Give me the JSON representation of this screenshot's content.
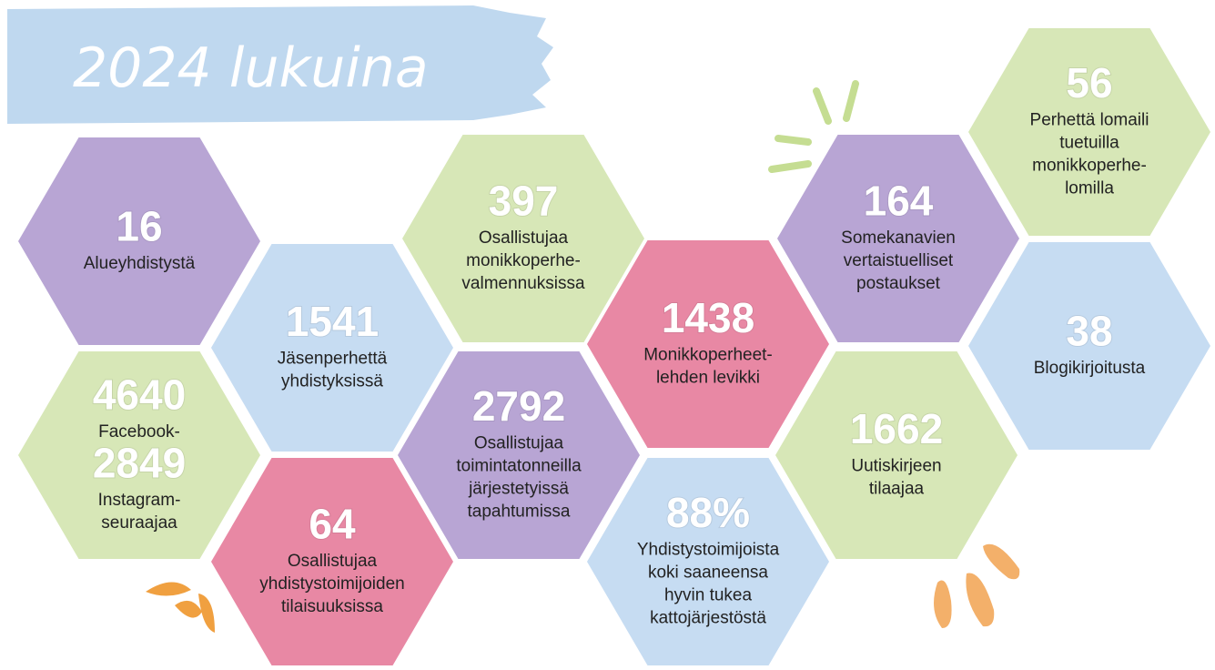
{
  "title": "2024 lukuina",
  "hexagons": [
    {
      "color": "#b8a5d4",
      "parts": [
        {
          "number": "16",
          "label": [
            "Alueyhdistystä"
          ]
        }
      ]
    },
    {
      "color": "#c6dcf2",
      "parts": [
        {
          "number": "1541",
          "label": [
            "Jäsenperhettä",
            "yhdistyksissä"
          ]
        }
      ]
    },
    {
      "color": "#d7e7b7",
      "parts": [
        {
          "number": "397",
          "label": [
            "Osallistujaa",
            "monikkoperhe-",
            "valmennuksissa"
          ]
        }
      ]
    },
    {
      "color": "#e888a4",
      "parts": [
        {
          "number": "1438",
          "label": [
            "Monikkoperheet-",
            "lehden levikki"
          ]
        }
      ]
    },
    {
      "color": "#b8a5d4",
      "parts": [
        {
          "number": "164",
          "label": [
            "Somekanavien",
            "vertaistuelliset",
            "postaukset"
          ]
        }
      ]
    },
    {
      "color": "#d7e7b7",
      "parts": [
        {
          "number": "56",
          "label": [
            "Perhettä lomaili",
            "tuetuilla",
            "monikkoperhe-",
            "lomilla"
          ]
        }
      ]
    },
    {
      "color": "#c6dcf2",
      "parts": [
        {
          "number": "38",
          "label": [
            "Blogikirjoitusta"
          ]
        }
      ]
    },
    {
      "color": "#d7e7b7",
      "parts": [
        {
          "number": "1662",
          "label": [
            "Uutiskirjeen",
            "tilaajaa"
          ]
        }
      ]
    },
    {
      "color": "#c6dcf2",
      "parts": [
        {
          "number": "88%",
          "label": [
            "Yhdistystoimijoista",
            "koki saaneensa",
            "hyvin tukea",
            "kattojärjestöstä"
          ]
        }
      ]
    },
    {
      "color": "#b8a5d4",
      "parts": [
        {
          "number": "2792",
          "label": [
            "Osallistujaa",
            "toimintatonneilla",
            "järjestetyissä",
            "tapahtumissa"
          ]
        }
      ]
    },
    {
      "color": "#e888a4",
      "parts": [
        {
          "number": "64",
          "label": [
            "Osallistujaa",
            "yhdistystoimijoiden",
            "tilaisuuksissa"
          ]
        }
      ]
    },
    {
      "color": "#d7e7b7",
      "parts": [
        {
          "number": "4640",
          "label": [
            "Facebook-"
          ]
        },
        {
          "number": "2849",
          "label": [
            "Instagram-",
            "seuraajaa"
          ]
        }
      ]
    }
  ]
}
